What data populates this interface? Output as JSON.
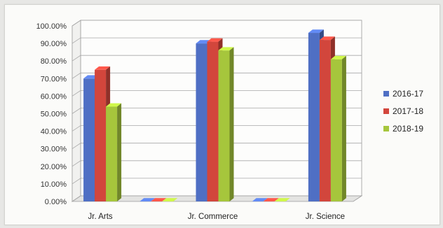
{
  "chart_data": {
    "type": "bar",
    "categories": [
      "Jr. Arts",
      "",
      "Jr. Commerce",
      "",
      "Jr. Science"
    ],
    "series": [
      {
        "name": "2016-17",
        "color": "#4f6fc4",
        "values": [
          70,
          0,
          90,
          0,
          96
        ]
      },
      {
        "name": "2017-18",
        "color": "#d2463c",
        "values": [
          75,
          0,
          91,
          0,
          92
        ]
      },
      {
        "name": "2018-19",
        "color": "#a6c63c",
        "values": [
          54,
          0,
          86,
          0,
          81
        ]
      }
    ],
    "y_ticks": [
      "0.00%",
      "10.00%",
      "20.00%",
      "30.00%",
      "40.00%",
      "50.00%",
      "60.00%",
      "70.00%",
      "80.00%",
      "90.00%",
      "100.00%"
    ],
    "ylim": [
      0,
      100
    ],
    "title": "",
    "xlabel": "",
    "ylabel": "",
    "grid": true,
    "legend_position": "right"
  }
}
